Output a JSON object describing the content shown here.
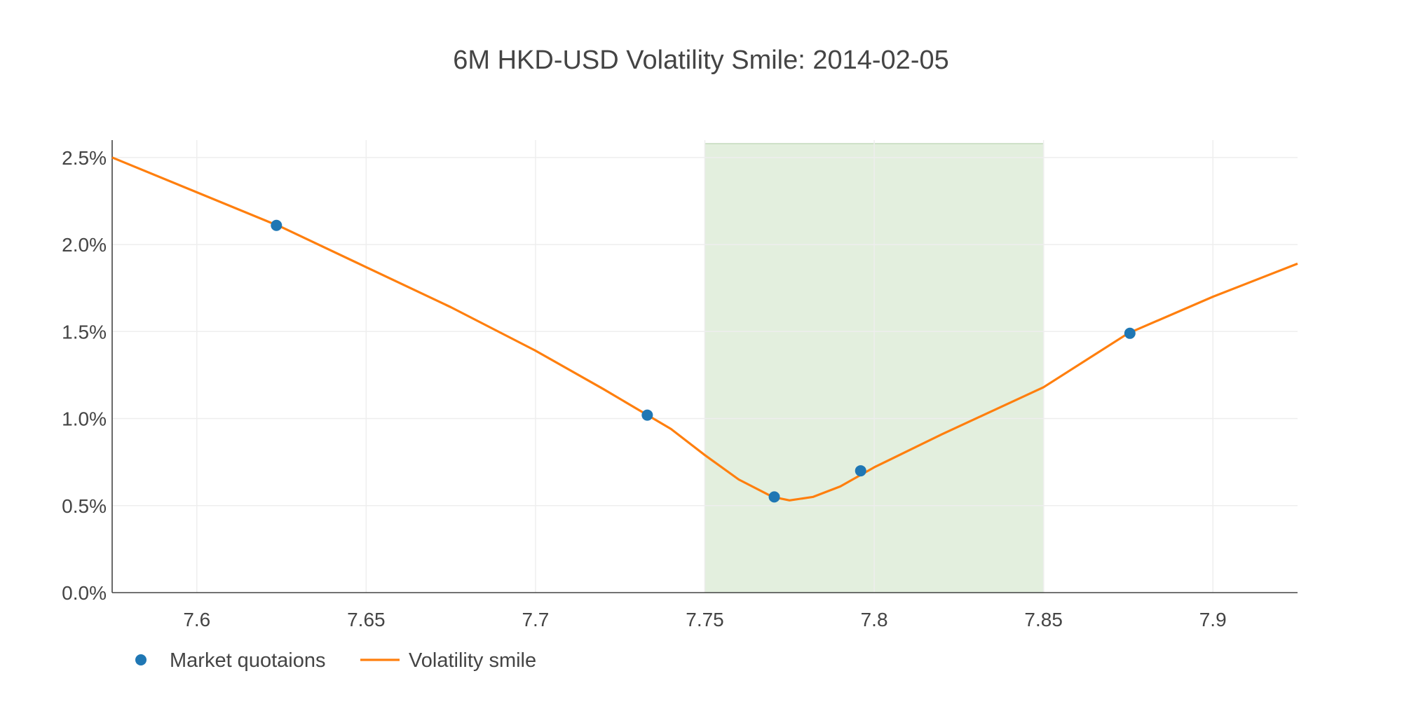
{
  "chart_data": {
    "type": "line",
    "title": "6M HKD-USD Volatility Smile: 2014-02-05",
    "xlabel": "",
    "ylabel": "",
    "xlim": [
      7.575,
      7.925
    ],
    "ylim": [
      0.0,
      0.026
    ],
    "x_ticks": [
      7.6,
      7.65,
      7.7,
      7.75,
      7.8,
      7.85,
      7.9
    ],
    "x_tick_labels": [
      "7.6",
      "7.65",
      "7.7",
      "7.75",
      "7.8",
      "7.85",
      "7.9"
    ],
    "y_ticks": [
      0.0,
      0.005,
      0.01,
      0.015,
      0.02,
      0.025
    ],
    "y_tick_labels": [
      "0.0%",
      "0.5%",
      "1.0%",
      "1.5%",
      "2.0%",
      "2.5%"
    ],
    "grid": true,
    "legend_position": "bottom-left",
    "shaded_band": {
      "x0": 7.75,
      "x1": 7.85,
      "color": "#d5e8cf"
    },
    "series": [
      {
        "name": "Market quotaions",
        "type": "scatter",
        "color": "#1f77b4",
        "x": [
          7.6235,
          7.733,
          7.7705,
          7.796,
          7.8755
        ],
        "y": [
          0.0211,
          0.0102,
          0.0055,
          0.007,
          0.0149
        ]
      },
      {
        "name": "Volatility smile",
        "type": "line",
        "color": "#ff7f0e",
        "x": [
          7.575,
          7.6,
          7.625,
          7.65,
          7.675,
          7.7,
          7.72,
          7.74,
          7.75,
          7.76,
          7.77,
          7.775,
          7.782,
          7.79,
          7.8,
          7.82,
          7.85,
          7.875,
          7.9,
          7.925
        ],
        "y": [
          0.025,
          0.023,
          0.021,
          0.0187,
          0.0164,
          0.0139,
          0.0117,
          0.0094,
          0.0079,
          0.0065,
          0.0055,
          0.0053,
          0.0055,
          0.0061,
          0.0072,
          0.0091,
          0.0118,
          0.0149,
          0.017,
          0.0189
        ]
      }
    ]
  }
}
